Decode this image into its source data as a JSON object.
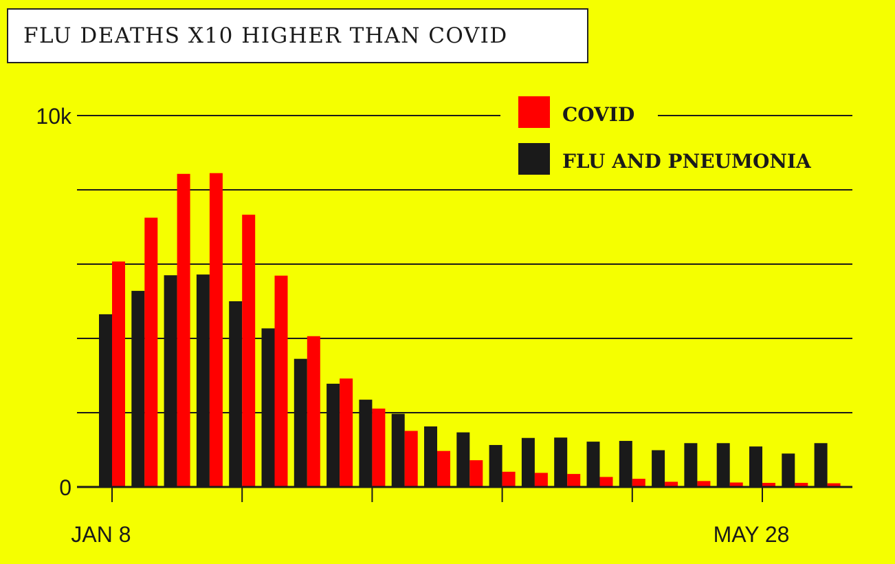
{
  "title": "FLU DEATHS X10 HIGHER THAN COVID",
  "colors": {
    "background": "#f5ff00",
    "covid": "#ff0000",
    "flu": "#1a1a1a",
    "grid": "#1a1a1a"
  },
  "chart_data": {
    "type": "bar",
    "title": "FLU DEATHS X10 HIGHER THAN COVID",
    "xlabel": "",
    "ylabel": "",
    "ylim": [
      0,
      10000
    ],
    "y_tick_labels": [
      {
        "value": 10000,
        "label": "10k"
      },
      {
        "value": 0,
        "label": "0"
      }
    ],
    "gridlines": [
      2000,
      4000,
      6000,
      8000,
      10000
    ],
    "x_tick_labels": [
      {
        "index": 0,
        "label": "JAN 8"
      },
      {
        "index": 20,
        "label": "MAY 28"
      }
    ],
    "legend_position": "top-right",
    "series": [
      {
        "name": "FLU AND PNEUMONIA",
        "color": "#1a1a1a",
        "values": [
          4650,
          5280,
          5700,
          5720,
          5000,
          4270,
          3450,
          2780,
          2350,
          1970,
          1630,
          1470,
          1130,
          1320,
          1330,
          1220,
          1240,
          990,
          1180,
          1180,
          1090,
          900,
          1180
        ]
      },
      {
        "name": "COVID",
        "color": "#ff0000",
        "values": [
          6070,
          7250,
          8430,
          8450,
          7330,
          5690,
          4060,
          2920,
          2110,
          1510,
          970,
          720,
          410,
          380,
          350,
          270,
          220,
          140,
          160,
          120,
          110,
          110,
          100
        ]
      }
    ]
  }
}
